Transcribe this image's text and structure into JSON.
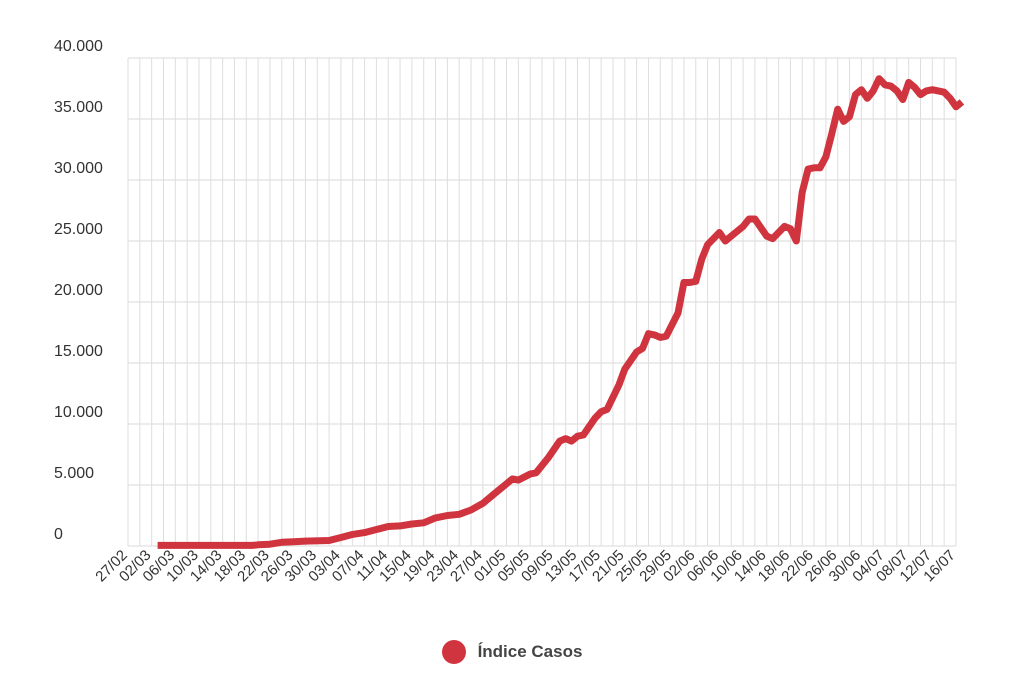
{
  "chart_data": {
    "type": "line",
    "title": "",
    "xlabel": "",
    "ylabel": "",
    "ylim": [
      0,
      40000
    ],
    "grid": true,
    "legend_position": "bottom",
    "y_tick_labels": [
      "0",
      "5.000",
      "10.000",
      "15.000",
      "20.000",
      "25.000",
      "30.000",
      "35.000",
      "40.000"
    ],
    "x_tick_labels": [
      "27/02",
      "02/03",
      "06/03",
      "10/03",
      "14/03",
      "18/03",
      "22/03",
      "26/03",
      "30/03",
      "03/04",
      "07/04",
      "11/04",
      "15/04",
      "19/04",
      "23/04",
      "27/04",
      "01/05",
      "05/05",
      "09/05",
      "13/05",
      "17/05",
      "21/05",
      "25/05",
      "29/05",
      "02/06",
      "06/06",
      "10/06",
      "14/06",
      "18/06",
      "22/06",
      "26/06",
      "30/06",
      "04/07",
      "08/07",
      "12/07",
      "16/07"
    ],
    "series": [
      {
        "name": "Índice Casos",
        "color": "#d0343f",
        "points": [
          [
            "03/03",
            50
          ],
          [
            "07/03",
            50
          ],
          [
            "11/03",
            50
          ],
          [
            "15/03",
            50
          ],
          [
            "19/03",
            50
          ],
          [
            "20/03",
            100
          ],
          [
            "22/03",
            150
          ],
          [
            "24/03",
            300
          ],
          [
            "26/03",
            350
          ],
          [
            "28/03",
            400
          ],
          [
            "01/04",
            450
          ],
          [
            "03/04",
            700
          ],
          [
            "05/04",
            950
          ],
          [
            "07/04",
            1100
          ],
          [
            "09/04",
            1350
          ],
          [
            "11/04",
            1600
          ],
          [
            "13/04",
            1650
          ],
          [
            "15/04",
            1800
          ],
          [
            "17/04",
            1900
          ],
          [
            "19/04",
            2300
          ],
          [
            "21/04",
            2500
          ],
          [
            "23/04",
            2600
          ],
          [
            "25/04",
            2950
          ],
          [
            "27/04",
            3500
          ],
          [
            "29/04",
            4300
          ],
          [
            "01/05",
            5100
          ],
          [
            "02/05",
            5500
          ],
          [
            "03/05",
            5400
          ],
          [
            "05/05",
            5900
          ],
          [
            "06/05",
            6000
          ],
          [
            "08/05",
            7200
          ],
          [
            "10/05",
            8600
          ],
          [
            "11/05",
            8800
          ],
          [
            "12/05",
            8600
          ],
          [
            "13/05",
            9000
          ],
          [
            "14/05",
            9100
          ],
          [
            "16/05",
            10500
          ],
          [
            "17/05",
            11000
          ],
          [
            "18/05",
            11200
          ],
          [
            "20/05",
            13200
          ],
          [
            "21/05",
            14500
          ],
          [
            "23/05",
            15900
          ],
          [
            "24/05",
            16200
          ],
          [
            "25/05",
            17400
          ],
          [
            "26/05",
            17300
          ],
          [
            "27/05",
            17100
          ],
          [
            "28/05",
            17200
          ],
          [
            "30/05",
            19100
          ],
          [
            "31/05",
            21600
          ],
          [
            "01/06",
            21600
          ],
          [
            "02/06",
            21700
          ],
          [
            "03/06",
            23500
          ],
          [
            "04/06",
            24700
          ],
          [
            "06/06",
            25700
          ],
          [
            "07/06",
            25000
          ],
          [
            "08/06",
            25400
          ],
          [
            "10/06",
            26200
          ],
          [
            "11/06",
            26800
          ],
          [
            "12/06",
            26800
          ],
          [
            "13/06",
            26100
          ],
          [
            "14/06",
            25400
          ],
          [
            "15/06",
            25200
          ],
          [
            "17/06",
            26200
          ],
          [
            "18/06",
            26000
          ],
          [
            "19/06",
            25000
          ],
          [
            "20/06",
            29000
          ],
          [
            "21/06",
            30900
          ],
          [
            "22/06",
            31000
          ],
          [
            "23/06",
            31000
          ],
          [
            "24/06",
            31900
          ],
          [
            "25/06",
            33800
          ],
          [
            "26/06",
            35800
          ],
          [
            "27/06",
            34800
          ],
          [
            "28/06",
            35200
          ],
          [
            "29/06",
            37000
          ],
          [
            "30/06",
            37400
          ],
          [
            "01/07",
            36700
          ],
          [
            "02/07",
            37300
          ],
          [
            "03/07",
            38300
          ],
          [
            "04/07",
            37800
          ],
          [
            "05/07",
            37700
          ],
          [
            "06/07",
            37300
          ],
          [
            "07/07",
            36600
          ],
          [
            "08/07",
            38000
          ],
          [
            "09/07",
            37600
          ],
          [
            "10/07",
            37000
          ],
          [
            "11/07",
            37300
          ],
          [
            "12/07",
            37400
          ],
          [
            "13/07",
            37300
          ],
          [
            "14/07",
            37200
          ],
          [
            "15/07",
            36700
          ],
          [
            "16/07",
            36000
          ],
          [
            "17/07",
            36400
          ]
        ]
      }
    ]
  }
}
